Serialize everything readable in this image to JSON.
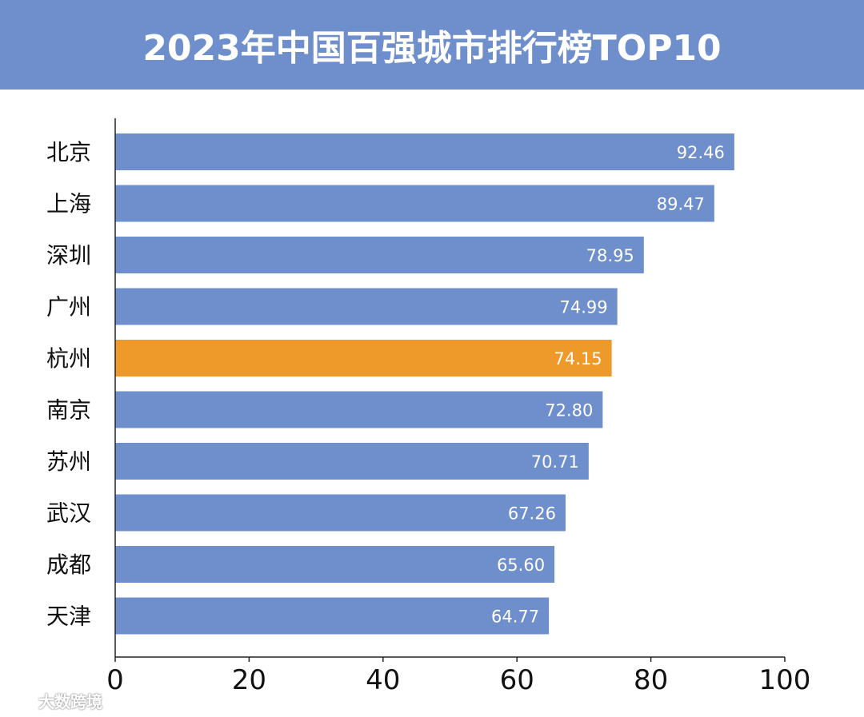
{
  "chart_data": {
    "type": "bar",
    "orientation": "horizontal",
    "title": "2023年中国百强城市排行榜TOP10",
    "categories": [
      "北京",
      "上海",
      "深圳",
      "广州",
      "杭州",
      "南京",
      "苏州",
      "武汉",
      "成都",
      "天津"
    ],
    "values": [
      92.46,
      89.47,
      78.95,
      74.99,
      74.15,
      72.8,
      70.71,
      67.26,
      65.6,
      64.77
    ],
    "value_labels": [
      "92.46",
      "89.47",
      "78.95",
      "74.99",
      "74.15",
      "72.80",
      "70.71",
      "67.26",
      "65.60",
      "64.77"
    ],
    "highlight_index": 4,
    "xlim": [
      0,
      100
    ],
    "x_ticks": [
      "0",
      "20",
      "40",
      "60",
      "80",
      "100"
    ],
    "grid": false,
    "colors": {
      "bar": "#6f8fcc",
      "highlight": "#ee9a2b",
      "title_background": "#6f8fcc",
      "axis": "#222222"
    }
  },
  "watermark": {
    "text": "大数跨境",
    "icon": "watermark-logo-icon"
  }
}
